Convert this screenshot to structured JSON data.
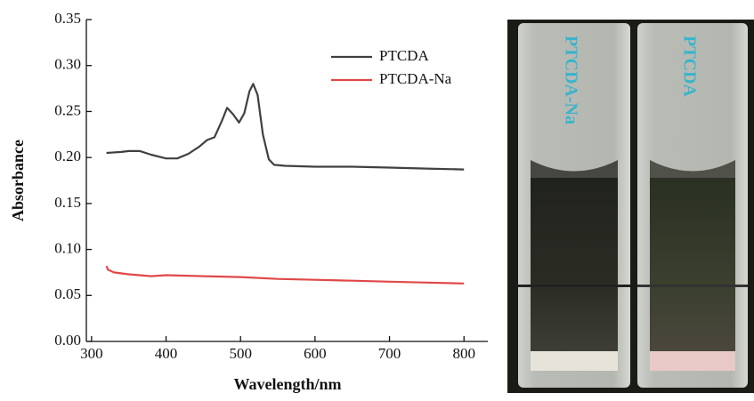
{
  "chart_data": {
    "type": "line",
    "x_label": "Wavelength/nm",
    "y_label": "Absorbance",
    "xlim": [
      293,
      832
    ],
    "ylim": [
      0,
      0.35
    ],
    "xticks": [
      300,
      400,
      500,
      600,
      700,
      800
    ],
    "yticks": [
      {
        "value": 0,
        "label": "0.00"
      },
      0.05,
      {
        "value": 0.1,
        "label": "0.10"
      },
      0.15,
      {
        "value": 0.2,
        "label": "0.20"
      },
      0.25,
      {
        "value": 0.3,
        "label": "0.30"
      },
      0.35
    ],
    "legend": "top-right",
    "series": [
      {
        "name": "PTCDA",
        "color": "#404040",
        "x": [
          320,
          340,
          350,
          365,
          380,
          400,
          415,
          430,
          445,
          455,
          465,
          475,
          482,
          490,
          498,
          505,
          512,
          517,
          523,
          530,
          538,
          545,
          560,
          600,
          650,
          700,
          750,
          800
        ],
        "values": [
          0.205,
          0.206,
          0.207,
          0.207,
          0.203,
          0.199,
          0.199,
          0.204,
          0.212,
          0.219,
          0.222,
          0.24,
          0.254,
          0.247,
          0.238,
          0.248,
          0.272,
          0.28,
          0.268,
          0.225,
          0.198,
          0.192,
          0.191,
          0.19,
          0.19,
          0.189,
          0.188,
          0.187
        ]
      },
      {
        "name": "PTCDA-Na",
        "color": "#e04848",
        "x": [
          320,
          322,
          330,
          350,
          380,
          400,
          450,
          500,
          550,
          600,
          650,
          700,
          750,
          800
        ],
        "values": [
          0.082,
          0.078,
          0.075,
          0.073,
          0.071,
          0.072,
          0.071,
          0.07,
          0.068,
          0.067,
          0.066,
          0.065,
          0.064,
          0.063
        ]
      }
    ]
  },
  "photo": {
    "labels": [
      "PTCDA-Na",
      "PTCDA"
    ]
  }
}
